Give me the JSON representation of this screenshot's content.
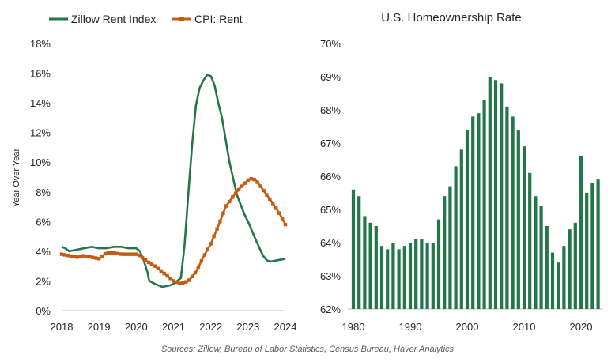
{
  "source_note": "Sources: Zillow, Bureau of Labor Statistics, Census Bureau, Haver Analytics",
  "colors": {
    "zillow": "#23764A",
    "cpi": "#C55A11",
    "bars": "#23764A",
    "axis": "#bfbfbf",
    "text": "#262626"
  },
  "chart_data": [
    {
      "type": "line",
      "title": "",
      "xlabel": "",
      "ylabel": "Year Over Year",
      "xlim": [
        2018,
        2024
      ],
      "ylim": [
        0,
        18
      ],
      "x_ticks": [
        2018,
        2019,
        2020,
        2021,
        2022,
        2023,
        2024
      ],
      "x_tick_labels": [
        "2018",
        "2019",
        "2020",
        "2021",
        "2022",
        "2023",
        "2024"
      ],
      "y_ticks": [
        0,
        2,
        4,
        6,
        8,
        10,
        12,
        14,
        16,
        18
      ],
      "y_tick_labels": [
        "0%",
        "2%",
        "4%",
        "6%",
        "8%",
        "10%",
        "12%",
        "14%",
        "16%",
        "18%"
      ],
      "legend": "top",
      "series": [
        {
          "name": "Zillow Rent Index",
          "color": "#23764A",
          "marker": "none",
          "x": [
            2018.0,
            2018.1,
            2018.2,
            2018.4,
            2018.6,
            2018.8,
            2019.0,
            2019.2,
            2019.4,
            2019.6,
            2019.8,
            2020.0,
            2020.1,
            2020.2,
            2020.3,
            2020.35,
            2020.5,
            2020.7,
            2020.9,
            2021.0,
            2021.2,
            2021.3,
            2021.4,
            2021.5,
            2021.6,
            2021.7,
            2021.8,
            2021.9,
            2022.0,
            2022.1,
            2022.2,
            2022.3,
            2022.5,
            2022.7,
            2022.9,
            2023.0,
            2023.2,
            2023.4,
            2023.5,
            2023.6,
            2023.8,
            2024.0
          ],
          "y": [
            4.3,
            4.2,
            4.0,
            4.1,
            4.2,
            4.3,
            4.2,
            4.2,
            4.3,
            4.3,
            4.2,
            4.2,
            4.0,
            3.4,
            2.6,
            2.0,
            1.8,
            1.6,
            1.7,
            1.8,
            2.2,
            4.5,
            8.0,
            11.2,
            13.8,
            15.0,
            15.5,
            15.9,
            15.8,
            15.2,
            14.0,
            13.0,
            10.0,
            7.8,
            6.5,
            6.0,
            4.8,
            3.7,
            3.4,
            3.3,
            3.4,
            3.5
          ]
        },
        {
          "name": "CPI: Rent",
          "color": "#C55A11",
          "marker": "square",
          "x": [
            2018.0,
            2018.2,
            2018.4,
            2018.6,
            2018.8,
            2019.0,
            2019.2,
            2019.4,
            2019.6,
            2019.8,
            2020.0,
            2020.1,
            2020.3,
            2020.5,
            2020.7,
            2020.9,
            2021.0,
            2021.2,
            2021.4,
            2021.6,
            2021.8,
            2022.0,
            2022.2,
            2022.4,
            2022.6,
            2022.8,
            2023.0,
            2023.1,
            2023.2,
            2023.3,
            2023.5,
            2023.7,
            2023.9,
            2024.0
          ],
          "y": [
            3.8,
            3.7,
            3.6,
            3.7,
            3.6,
            3.5,
            3.9,
            3.9,
            3.8,
            3.8,
            3.8,
            3.7,
            3.3,
            3.0,
            2.6,
            2.2,
            2.0,
            1.8,
            2.0,
            2.6,
            3.6,
            4.5,
            5.7,
            7.0,
            7.7,
            8.3,
            8.8,
            8.9,
            8.8,
            8.5,
            7.8,
            7.1,
            6.3,
            5.8
          ]
        }
      ]
    },
    {
      "type": "bar",
      "title": "U.S. Homeownership  Rate",
      "xlabel": "",
      "ylabel": "",
      "ylim": [
        62,
        70
      ],
      "x_ticks": [
        1980,
        1990,
        2000,
        2010,
        2020
      ],
      "x_tick_labels": [
        "1980",
        "1990",
        "2000",
        "2010",
        "2020"
      ],
      "y_ticks": [
        62,
        63,
        64,
        65,
        66,
        67,
        68,
        69,
        70
      ],
      "y_tick_labels": [
        "62%",
        "63%",
        "64%",
        "65%",
        "66%",
        "67%",
        "68%",
        "69%",
        "70%"
      ],
      "categories": [
        1980,
        1981,
        1982,
        1983,
        1984,
        1985,
        1986,
        1987,
        1988,
        1989,
        1990,
        1991,
        1992,
        1993,
        1994,
        1995,
        1996,
        1997,
        1998,
        1999,
        2000,
        2001,
        2002,
        2003,
        2004,
        2005,
        2006,
        2007,
        2008,
        2009,
        2010,
        2011,
        2012,
        2013,
        2014,
        2015,
        2016,
        2017,
        2018,
        2019,
        2020,
        2021,
        2022,
        2023
      ],
      "values": [
        65.6,
        65.4,
        64.8,
        64.6,
        64.5,
        63.9,
        63.8,
        64.0,
        63.8,
        63.9,
        64.0,
        64.1,
        64.1,
        64.0,
        64.0,
        64.7,
        65.4,
        65.7,
        66.3,
        66.8,
        67.4,
        67.8,
        67.9,
        68.3,
        69.0,
        68.9,
        68.8,
        68.1,
        67.8,
        67.4,
        66.9,
        66.1,
        65.4,
        65.1,
        64.5,
        63.7,
        63.4,
        63.9,
        64.4,
        64.6,
        66.6,
        65.5,
        65.8,
        65.9
      ]
    }
  ]
}
